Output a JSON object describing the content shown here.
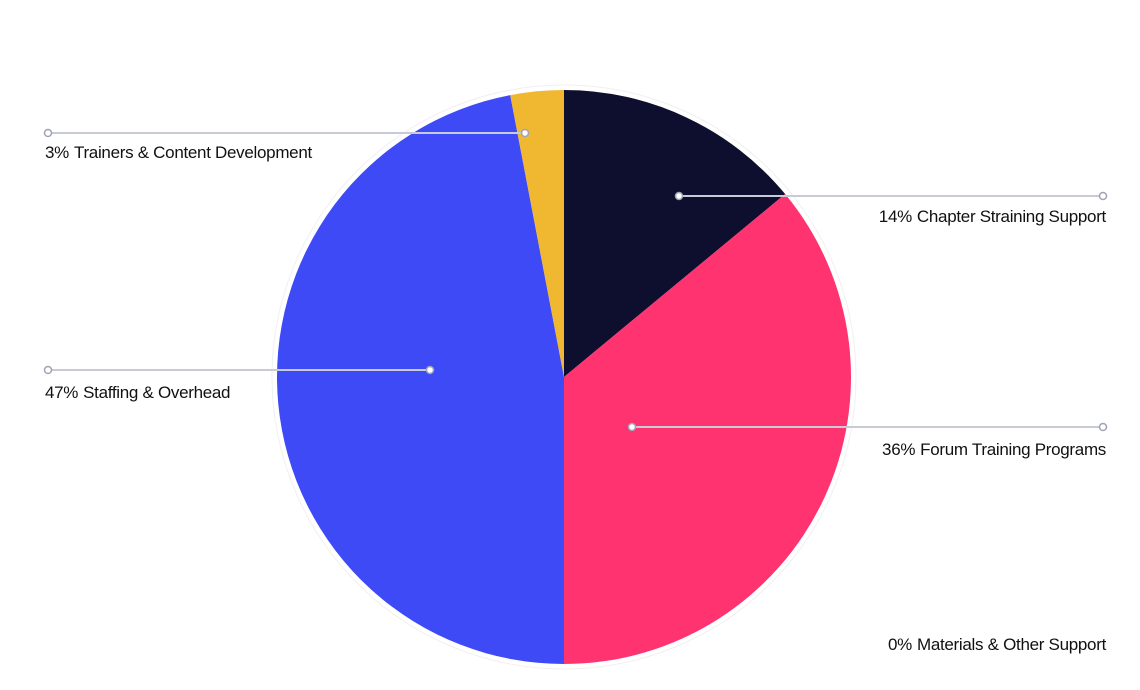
{
  "chart_data": {
    "type": "pie",
    "categories": [
      "Chapter Straining Support",
      "Forum Training Programs",
      "Materials & Other Support",
      "Staffing & Overhead",
      "Trainers & Content Development"
    ],
    "values": [
      14,
      36,
      0,
      47,
      3
    ],
    "value_labels": [
      "14%",
      "36%",
      "0%",
      "47%",
      "3%"
    ],
    "colors": [
      "#0e0e2e",
      "#ff3370",
      "#9aa0b0",
      "#3d4af5",
      "#f0b830"
    ]
  }
}
